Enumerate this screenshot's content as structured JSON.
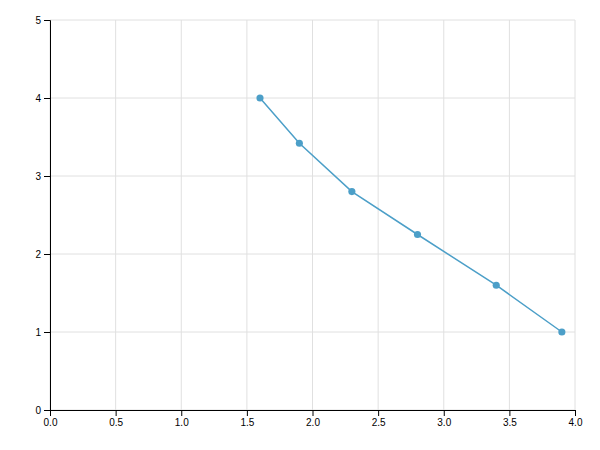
{
  "chart_data": {
    "type": "line",
    "x": [
      1.6,
      1.9,
      2.3,
      2.8,
      3.4,
      3.9
    ],
    "values": [
      4.0,
      3.42,
      2.8,
      2.25,
      1.6,
      1.0
    ],
    "color": "#4c9fc8",
    "marker": "circle",
    "xlim": [
      0.0,
      4.0
    ],
    "ylim": [
      0,
      5
    ],
    "xticks": [
      {
        "value": 0.0,
        "label": "0.0"
      },
      0.5,
      {
        "value": 1.0,
        "label": "1.0"
      },
      1.5,
      {
        "value": 2.0,
        "label": "2.0"
      },
      2.5,
      {
        "value": 3.0,
        "label": "3.0"
      },
      3.5,
      {
        "value": 4.0,
        "label": "4.0"
      }
    ],
    "yticks": [
      0,
      1,
      2,
      3,
      4,
      5
    ],
    "grid": true
  }
}
